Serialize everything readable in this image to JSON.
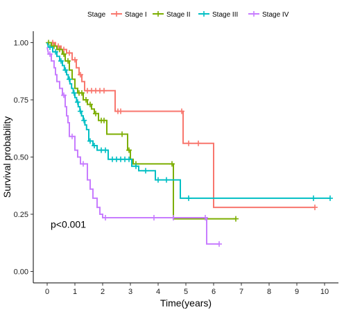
{
  "chart_data": {
    "type": "line",
    "subtype": "kaplan-meier",
    "xlabel": "Time(years)",
    "ylabel": "Survival probability",
    "xlim": [
      -0.5,
      10.5
    ],
    "ylim": [
      -0.05,
      1.05
    ],
    "x_ticks": [
      0,
      1,
      2,
      3,
      4,
      5,
      6,
      7,
      8,
      9,
      10
    ],
    "y_ticks": [
      0.0,
      0.25,
      0.5,
      0.75,
      1.0
    ],
    "y_tick_labels": [
      "0.00",
      "0.25",
      "0.50",
      "0.75",
      "1.00"
    ],
    "grid": false,
    "legend": {
      "title": "Stage",
      "position": "top"
    },
    "annotations": [
      {
        "text": "p<0.001",
        "x": 0.2,
        "y": 0.2
      }
    ],
    "series": [
      {
        "name": "Stage I",
        "color": "#F8766D",
        "steps": [
          [
            0,
            1.0
          ],
          [
            0.3,
            1.0
          ],
          [
            0.3,
            0.985
          ],
          [
            0.5,
            0.985
          ],
          [
            0.5,
            0.97
          ],
          [
            0.7,
            0.97
          ],
          [
            0.7,
            0.955
          ],
          [
            0.9,
            0.955
          ],
          [
            0.9,
            0.925
          ],
          [
            1.05,
            0.925
          ],
          [
            1.05,
            0.89
          ],
          [
            1.15,
            0.89
          ],
          [
            1.15,
            0.86
          ],
          [
            1.25,
            0.86
          ],
          [
            1.25,
            0.83
          ],
          [
            1.35,
            0.83
          ],
          [
            1.35,
            0.79
          ],
          [
            2.45,
            0.79
          ],
          [
            2.45,
            0.7
          ],
          [
            4.9,
            0.7
          ],
          [
            4.9,
            0.56
          ],
          [
            6.0,
            0.56
          ],
          [
            6.0,
            0.28
          ],
          [
            9.65,
            0.28
          ]
        ],
        "censor": [
          [
            0.2,
            1.0
          ],
          [
            0.4,
            0.985
          ],
          [
            0.6,
            0.97
          ],
          [
            0.8,
            0.955
          ],
          [
            1.0,
            0.925
          ],
          [
            1.2,
            0.86
          ],
          [
            1.45,
            0.79
          ],
          [
            1.6,
            0.79
          ],
          [
            1.75,
            0.79
          ],
          [
            1.9,
            0.79
          ],
          [
            2.05,
            0.79
          ],
          [
            2.55,
            0.7
          ],
          [
            2.65,
            0.7
          ],
          [
            4.85,
            0.7
          ],
          [
            5.1,
            0.56
          ],
          [
            5.45,
            0.56
          ],
          [
            9.65,
            0.28
          ]
        ]
      },
      {
        "name": "Stage II",
        "color": "#7CAE00",
        "steps": [
          [
            0,
            1.0
          ],
          [
            0.15,
            1.0
          ],
          [
            0.15,
            0.985
          ],
          [
            0.35,
            0.985
          ],
          [
            0.35,
            0.97
          ],
          [
            0.55,
            0.97
          ],
          [
            0.55,
            0.95
          ],
          [
            0.65,
            0.95
          ],
          [
            0.65,
            0.92
          ],
          [
            0.8,
            0.92
          ],
          [
            0.8,
            0.88
          ],
          [
            0.9,
            0.88
          ],
          [
            0.9,
            0.84
          ],
          [
            1.0,
            0.84
          ],
          [
            1.0,
            0.8
          ],
          [
            1.1,
            0.8
          ],
          [
            1.1,
            0.78
          ],
          [
            1.3,
            0.78
          ],
          [
            1.3,
            0.75
          ],
          [
            1.45,
            0.75
          ],
          [
            1.45,
            0.73
          ],
          [
            1.6,
            0.73
          ],
          [
            1.6,
            0.71
          ],
          [
            1.7,
            0.71
          ],
          [
            1.7,
            0.69
          ],
          [
            1.85,
            0.69
          ],
          [
            1.85,
            0.66
          ],
          [
            2.15,
            0.66
          ],
          [
            2.15,
            0.6
          ],
          [
            2.9,
            0.6
          ],
          [
            2.9,
            0.53
          ],
          [
            3.0,
            0.53
          ],
          [
            3.0,
            0.49
          ],
          [
            3.1,
            0.49
          ],
          [
            3.1,
            0.47
          ],
          [
            4.55,
            0.47
          ],
          [
            4.55,
            0.23
          ],
          [
            6.8,
            0.23
          ]
        ],
        "censor": [
          [
            0.05,
            1.0
          ],
          [
            0.25,
            0.985
          ],
          [
            0.45,
            0.97
          ],
          [
            0.6,
            0.95
          ],
          [
            0.75,
            0.92
          ],
          [
            1.15,
            0.78
          ],
          [
            1.25,
            0.78
          ],
          [
            1.4,
            0.75
          ],
          [
            1.55,
            0.73
          ],
          [
            1.75,
            0.69
          ],
          [
            1.95,
            0.66
          ],
          [
            2.05,
            0.66
          ],
          [
            2.7,
            0.6
          ],
          [
            2.95,
            0.53
          ],
          [
            3.2,
            0.47
          ],
          [
            4.5,
            0.47
          ],
          [
            6.8,
            0.23
          ]
        ]
      },
      {
        "name": "Stage III",
        "color": "#00BFC4",
        "steps": [
          [
            0,
            1.0
          ],
          [
            0.05,
            0.98
          ],
          [
            0.2,
            0.98
          ],
          [
            0.2,
            0.96
          ],
          [
            0.35,
            0.96
          ],
          [
            0.35,
            0.94
          ],
          [
            0.45,
            0.94
          ],
          [
            0.45,
            0.92
          ],
          [
            0.55,
            0.92
          ],
          [
            0.55,
            0.9
          ],
          [
            0.62,
            0.9
          ],
          [
            0.62,
            0.88
          ],
          [
            0.7,
            0.88
          ],
          [
            0.7,
            0.86
          ],
          [
            0.76,
            0.86
          ],
          [
            0.76,
            0.84
          ],
          [
            0.82,
            0.84
          ],
          [
            0.82,
            0.82
          ],
          [
            0.88,
            0.82
          ],
          [
            0.88,
            0.8
          ],
          [
            0.94,
            0.8
          ],
          [
            0.94,
            0.78
          ],
          [
            1.0,
            0.78
          ],
          [
            1.0,
            0.76
          ],
          [
            1.06,
            0.76
          ],
          [
            1.06,
            0.74
          ],
          [
            1.12,
            0.74
          ],
          [
            1.12,
            0.72
          ],
          [
            1.18,
            0.72
          ],
          [
            1.18,
            0.7
          ],
          [
            1.24,
            0.7
          ],
          [
            1.24,
            0.68
          ],
          [
            1.3,
            0.68
          ],
          [
            1.3,
            0.66
          ],
          [
            1.36,
            0.66
          ],
          [
            1.36,
            0.64
          ],
          [
            1.42,
            0.64
          ],
          [
            1.42,
            0.62
          ],
          [
            1.5,
            0.62
          ],
          [
            1.5,
            0.57
          ],
          [
            1.65,
            0.57
          ],
          [
            1.65,
            0.55
          ],
          [
            1.8,
            0.55
          ],
          [
            1.8,
            0.53
          ],
          [
            2.2,
            0.53
          ],
          [
            2.2,
            0.49
          ],
          [
            3.05,
            0.49
          ],
          [
            3.05,
            0.46
          ],
          [
            3.3,
            0.46
          ],
          [
            3.3,
            0.44
          ],
          [
            3.9,
            0.44
          ],
          [
            3.9,
            0.4
          ],
          [
            4.8,
            0.4
          ],
          [
            4.8,
            0.32
          ],
          [
            10.2,
            0.32
          ]
        ],
        "censor": [
          [
            0.1,
            0.98
          ],
          [
            0.3,
            0.96
          ],
          [
            0.5,
            0.92
          ],
          [
            0.66,
            0.88
          ],
          [
            0.8,
            0.84
          ],
          [
            0.97,
            0.78
          ],
          [
            1.1,
            0.74
          ],
          [
            1.2,
            0.7
          ],
          [
            1.33,
            0.66
          ],
          [
            1.55,
            0.57
          ],
          [
            1.7,
            0.55
          ],
          [
            1.95,
            0.53
          ],
          [
            2.1,
            0.53
          ],
          [
            2.35,
            0.49
          ],
          [
            2.5,
            0.49
          ],
          [
            2.65,
            0.49
          ],
          [
            2.8,
            0.49
          ],
          [
            2.95,
            0.49
          ],
          [
            3.2,
            0.46
          ],
          [
            3.55,
            0.44
          ],
          [
            4.0,
            0.4
          ],
          [
            4.3,
            0.4
          ],
          [
            5.1,
            0.32
          ],
          [
            9.6,
            0.32
          ],
          [
            10.2,
            0.32
          ]
        ]
      },
      {
        "name": "Stage IV",
        "color": "#C77CFF",
        "steps": [
          [
            0,
            0.98
          ],
          [
            0.05,
            0.95
          ],
          [
            0.15,
            0.95
          ],
          [
            0.15,
            0.92
          ],
          [
            0.25,
            0.92
          ],
          [
            0.25,
            0.89
          ],
          [
            0.3,
            0.89
          ],
          [
            0.3,
            0.86
          ],
          [
            0.35,
            0.86
          ],
          [
            0.35,
            0.83
          ],
          [
            0.45,
            0.83
          ],
          [
            0.45,
            0.8
          ],
          [
            0.55,
            0.8
          ],
          [
            0.55,
            0.77
          ],
          [
            0.65,
            0.77
          ],
          [
            0.65,
            0.72
          ],
          [
            0.7,
            0.72
          ],
          [
            0.7,
            0.68
          ],
          [
            0.75,
            0.68
          ],
          [
            0.75,
            0.65
          ],
          [
            0.8,
            0.65
          ],
          [
            0.8,
            0.59
          ],
          [
            1.0,
            0.59
          ],
          [
            1.0,
            0.53
          ],
          [
            1.1,
            0.53
          ],
          [
            1.1,
            0.5
          ],
          [
            1.2,
            0.5
          ],
          [
            1.2,
            0.47
          ],
          [
            1.45,
            0.47
          ],
          [
            1.45,
            0.4
          ],
          [
            1.55,
            0.4
          ],
          [
            1.55,
            0.36
          ],
          [
            1.65,
            0.36
          ],
          [
            1.65,
            0.32
          ],
          [
            1.8,
            0.32
          ],
          [
            1.8,
            0.28
          ],
          [
            1.9,
            0.28
          ],
          [
            1.9,
            0.25
          ],
          [
            2.0,
            0.25
          ],
          [
            2.0,
            0.235
          ],
          [
            5.75,
            0.235
          ],
          [
            5.75,
            0.12
          ],
          [
            6.2,
            0.12
          ]
        ],
        "censor": [
          [
            0.1,
            0.95
          ],
          [
            0.6,
            0.77
          ],
          [
            0.9,
            0.59
          ],
          [
            1.3,
            0.47
          ],
          [
            2.1,
            0.235
          ],
          [
            3.85,
            0.235
          ],
          [
            4.55,
            0.235
          ],
          [
            5.7,
            0.235
          ],
          [
            6.2,
            0.12
          ]
        ]
      }
    ]
  }
}
